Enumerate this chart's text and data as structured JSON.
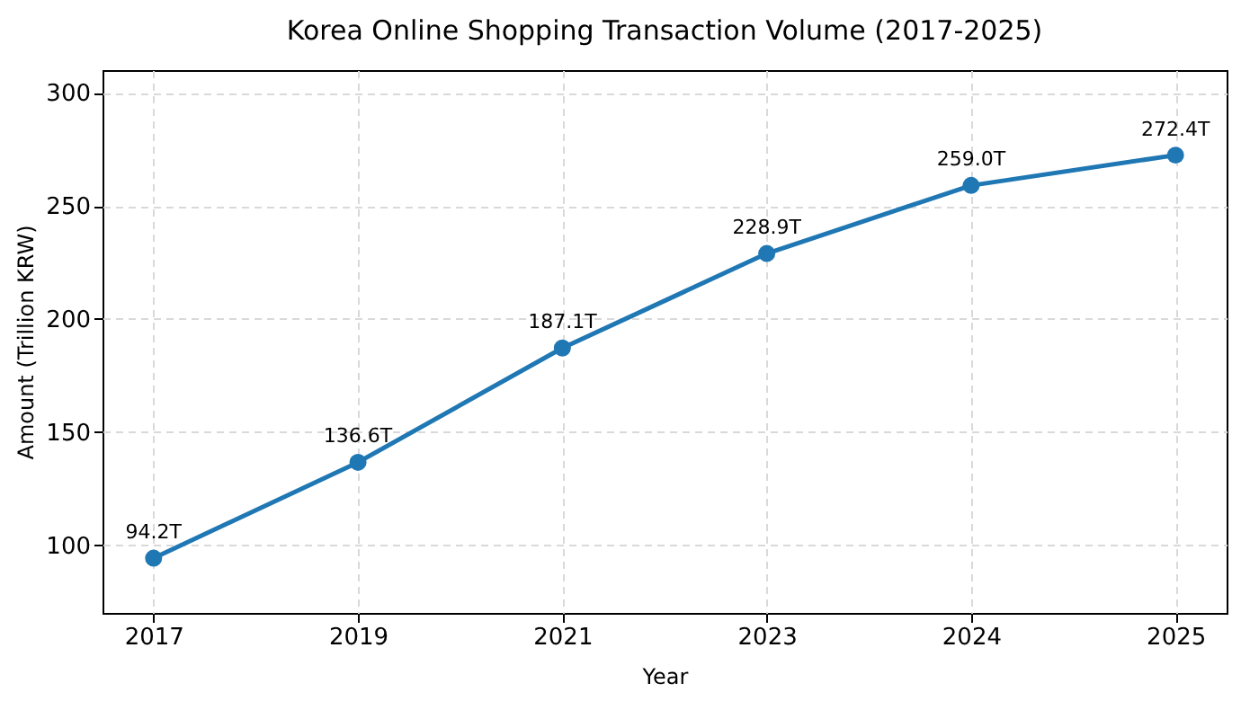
{
  "chart_data": {
    "type": "line",
    "title": "Korea Online Shopping Transaction Volume (2017-2025)",
    "xlabel": "Year",
    "ylabel": "Amount (Trillion KRW)",
    "categories": [
      "2017",
      "2019",
      "2021",
      "2023",
      "2024",
      "2025"
    ],
    "series": [
      {
        "color": "#1f77b4",
        "values": [
          94.2,
          136.6,
          187.1,
          228.9,
          259.0,
          272.4
        ],
        "value_labels": [
          "94.2T",
          "136.6T",
          "187.1T",
          "228.9T",
          "259.0T",
          "272.4T"
        ]
      }
    ],
    "ylim": [
      70,
      310
    ],
    "yticks": [
      100,
      150,
      200,
      250,
      300
    ],
    "grid": true,
    "marker": "circle",
    "line_style": "solid"
  }
}
